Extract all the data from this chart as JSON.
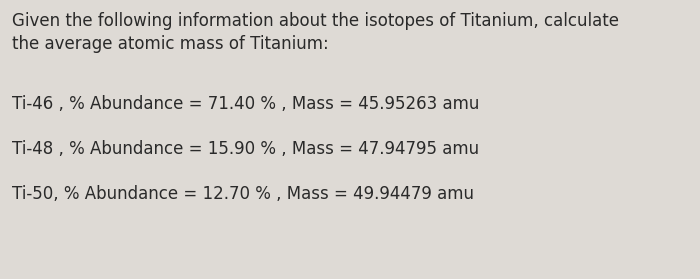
{
  "background_color": "#dedad5",
  "text_color": "#2a2a2a",
  "title_line1": "Given the following information about the isotopes of Titanium, calculate",
  "title_line2": "the average atomic mass of Titanium:",
  "line1": "Ti-46 , % Abundance = 71.40 % , Mass = 45.95263 amu",
  "line2": "Ti-48 , % Abundance = 15.90 % , Mass = 47.94795 amu",
  "line3": "Ti-50, % Abundance = 12.70 % , Mass = 49.94479 amu",
  "title_fontsize": 12.0,
  "body_fontsize": 12.0,
  "fig_width": 7.0,
  "fig_height": 2.79,
  "dpi": 100
}
